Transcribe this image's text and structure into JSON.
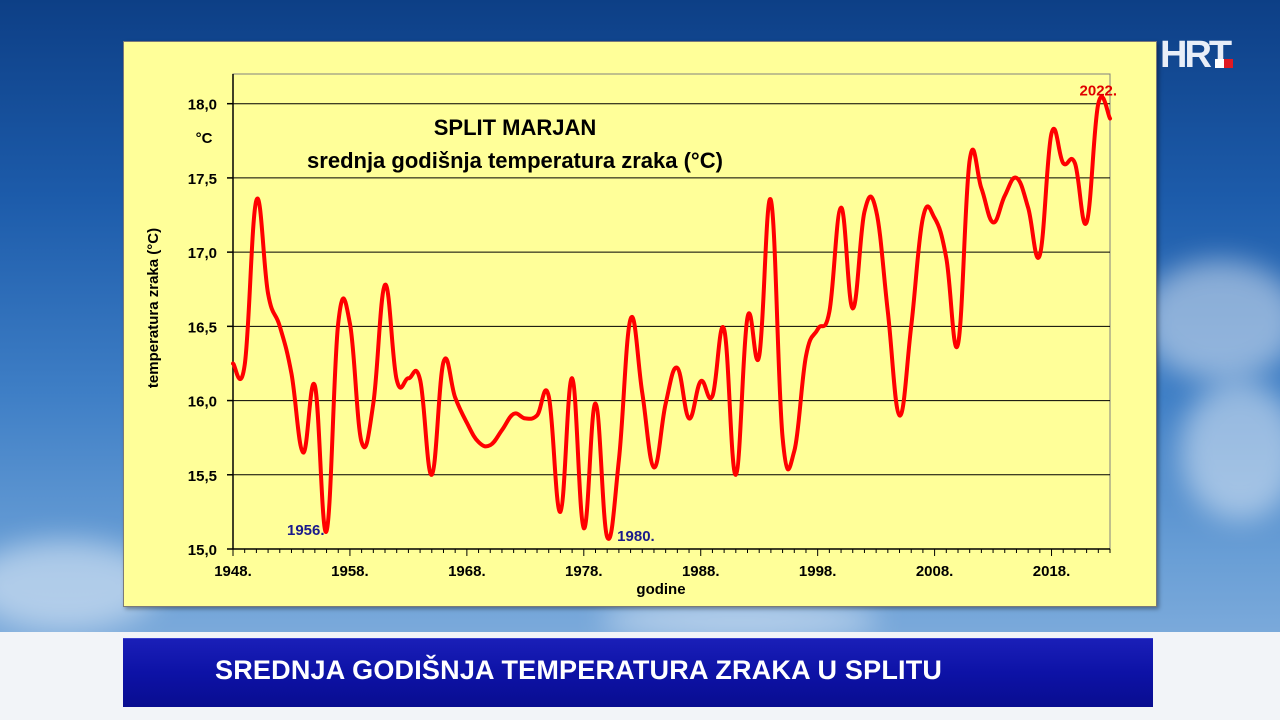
{
  "logo": {
    "text": "HRT"
  },
  "caption": {
    "text": "SREDNJA GODIŠNJA TEMPERATURA ZRAKA U SPLITU"
  },
  "colors": {
    "series": "#ff0000",
    "panel": "#ffff99",
    "caption_bar": "#0d12a6",
    "annotation_low": "#1a1a8c",
    "annotation_high": "#e00000"
  },
  "chart_data": {
    "type": "line",
    "title": "SPLIT MARJAN",
    "subtitle": "srednja godišnja temperatura zraka (°C)",
    "xlabel": "godine",
    "ylabel": "temperatura zraka (°C)",
    "y_unit_label": "°C",
    "xlim": [
      1948,
      2023
    ],
    "ylim": [
      15.0,
      18.2
    ],
    "x_ticks": [
      {
        "value": 1948,
        "label": "1948."
      },
      {
        "value": 1958,
        "label": "1958."
      },
      {
        "value": 1968,
        "label": "1968."
      },
      {
        "value": 1978,
        "label": "1978."
      },
      {
        "value": 1988,
        "label": "1988."
      },
      {
        "value": 1998,
        "label": "1998."
      },
      {
        "value": 2008,
        "label": "2008."
      },
      {
        "value": 2018,
        "label": "2018."
      }
    ],
    "y_ticks": [
      {
        "value": 15.0,
        "label": "15,0"
      },
      {
        "value": 15.5,
        "label": "15,5"
      },
      {
        "value": 16.0,
        "label": "16,0"
      },
      {
        "value": 16.5,
        "label": "16,5"
      },
      {
        "value": 17.0,
        "label": "17,0"
      },
      {
        "value": 17.5,
        "label": "17,5"
      },
      {
        "value": 18.0,
        "label": "18,0"
      }
    ],
    "grid": "horizontal",
    "series": [
      {
        "x": [
          1948,
          1949,
          1950,
          1951,
          1952,
          1953,
          1954,
          1955,
          1956,
          1957,
          1958,
          1959,
          1960,
          1961,
          1962,
          1963,
          1964,
          1965,
          1966,
          1967,
          1968,
          1969,
          1970,
          1971,
          1972,
          1973,
          1974,
          1975,
          1976,
          1977,
          1978,
          1979,
          1980,
          1981,
          1982,
          1983,
          1984,
          1985,
          1986,
          1987,
          1988,
          1989,
          1990,
          1991,
          1992,
          1993,
          1994,
          1995,
          1996,
          1997,
          1998,
          1999,
          2000,
          2001,
          2002,
          2003,
          2004,
          2005,
          2006,
          2007,
          2008,
          2009,
          2010,
          2011,
          2012,
          2013,
          2014,
          2015,
          2016,
          2017,
          2018,
          2019,
          2020,
          2021,
          2022,
          2023
        ],
        "y": [
          16.25,
          16.24,
          17.35,
          16.72,
          16.5,
          16.18,
          15.65,
          16.1,
          15.12,
          16.52,
          16.52,
          15.72,
          15.98,
          16.78,
          16.14,
          16.15,
          16.14,
          15.5,
          16.26,
          16.02,
          15.85,
          15.72,
          15.7,
          15.8,
          15.91,
          15.88,
          15.9,
          16.03,
          15.25,
          16.15,
          15.14,
          15.98,
          15.08,
          15.6,
          16.55,
          16.05,
          15.55,
          15.98,
          16.22,
          15.88,
          16.13,
          16.03,
          16.48,
          15.5,
          16.56,
          16.3,
          17.35,
          15.75,
          15.66,
          16.3,
          16.48,
          16.6,
          17.3,
          16.62,
          17.27,
          17.28,
          16.6,
          15.9,
          16.5,
          17.23,
          17.23,
          16.96,
          16.38,
          17.62,
          17.43,
          17.2,
          17.38,
          17.5,
          17.3,
          16.98,
          17.8,
          17.6,
          17.6,
          17.2,
          18.0,
          17.9
        ]
      }
    ],
    "annotations": [
      {
        "label": "1956.",
        "x": 1956,
        "y": 15.12
      },
      {
        "label": "1980.",
        "x": 1980,
        "y": 15.08
      },
      {
        "label": "2022.",
        "x": 2022,
        "y": 18.0
      }
    ]
  }
}
